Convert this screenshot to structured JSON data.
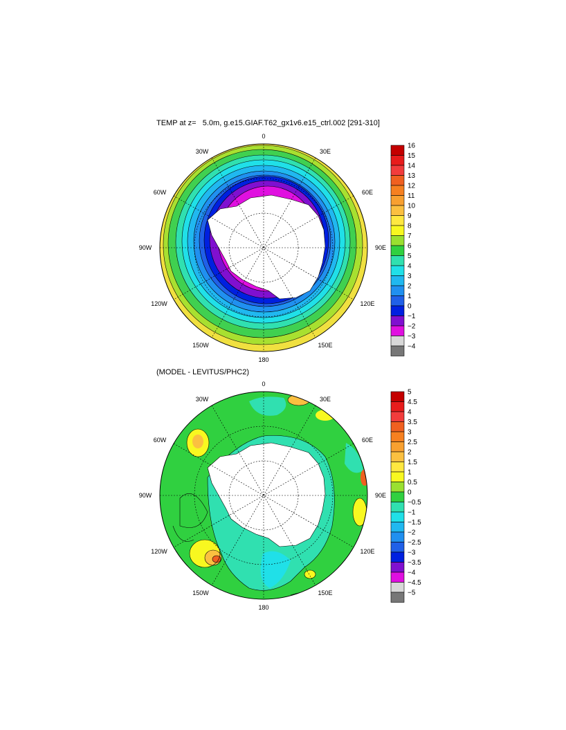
{
  "top_panel": {
    "title": "TEMP at z=   5.0m, g.e15.GIAF.T62_gx1v6.e15_ctrl.002 [291-310]",
    "lon_labels": [
      "0",
      "30E",
      "60E",
      "90E",
      "120E",
      "150E",
      "180",
      "150W",
      "120W",
      "90W",
      "60W",
      "30W"
    ],
    "colorbar": {
      "labels": [
        "16",
        "15",
        "14",
        "13",
        "12",
        "11",
        "10",
        "9",
        "8",
        "7",
        "6",
        "5",
        "4",
        "3",
        "2",
        "1",
        "0",
        "−1",
        "−2",
        "−3",
        "−4"
      ],
      "colors": [
        "#c40000",
        "#e81c1c",
        "#f23c3c",
        "#f06020",
        "#f68020",
        "#f8a030",
        "#fbc040",
        "#ffe840",
        "#f8f820",
        "#9ae030",
        "#30d040",
        "#30e0b0",
        "#20e0e8",
        "#20b8f0",
        "#2090f0",
        "#2060e8",
        "#0020e0",
        "#8010d0",
        "#e010e0",
        "#d8d8d8",
        "#777777"
      ]
    }
  },
  "bottom_panel": {
    "title": "(MODEL - LEVITUS/PHC2)",
    "lon_labels": [
      "0",
      "30E",
      "60E",
      "90E",
      "120E",
      "150E",
      "180",
      "150W",
      "120W",
      "90W",
      "60W",
      "30W"
    ],
    "colorbar": {
      "labels": [
        "5",
        "4.5",
        "4",
        "3.5",
        "3",
        "2.5",
        "2",
        "1.5",
        "1",
        "0.5",
        "0",
        "−0.5",
        "−1",
        "−1.5",
        "−2",
        "−2.5",
        "−3",
        "−3.5",
        "−4",
        "−4.5",
        "−5"
      ],
      "colors": [
        "#c40000",
        "#e81c1c",
        "#f23c3c",
        "#f06020",
        "#f68020",
        "#f8a030",
        "#fbc040",
        "#ffe840",
        "#f8f820",
        "#9ae030",
        "#30d040",
        "#30e0b0",
        "#20e0e8",
        "#20b8f0",
        "#2090f0",
        "#2060e8",
        "#0020e0",
        "#8010d0",
        "#e010e0",
        "#d8d8d8",
        "#777777"
      ]
    }
  }
}
